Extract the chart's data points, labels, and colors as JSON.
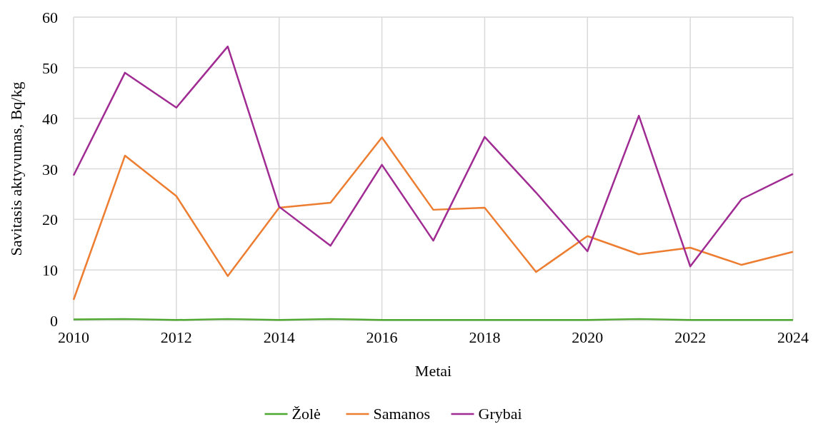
{
  "chart_data": {
    "type": "line",
    "xlabel": "Metai",
    "ylabel": "Savitasis aktyvumas, Bq/kg",
    "x": [
      2010,
      2011,
      2012,
      2013,
      2014,
      2015,
      2016,
      2017,
      2018,
      2019,
      2020,
      2021,
      2022,
      2023,
      2024
    ],
    "xlim": [
      2010,
      2024
    ],
    "xticks": [
      2010,
      2012,
      2014,
      2016,
      2018,
      2020,
      2022,
      2024
    ],
    "ylim": [
      0,
      60
    ],
    "yticks": [
      0,
      10,
      20,
      30,
      40,
      50,
      60
    ],
    "grid": true,
    "legend": "bottom",
    "marker": "none",
    "line_style": "solid",
    "series": [
      {
        "name": "Žolė",
        "color": "#4ea72e",
        "values": [
          0.2,
          0.3,
          0.1,
          0.3,
          0.1,
          0.3,
          0.1,
          0.1,
          0.1,
          0.1,
          0.1,
          0.3,
          0.1,
          0.1,
          0.1
        ]
      },
      {
        "name": "Samanos",
        "color": "#ed7d31",
        "values": [
          4.1,
          32.6,
          24.6,
          8.8,
          22.3,
          23.3,
          36.2,
          21.9,
          22.3,
          9.6,
          16.7,
          13.1,
          14.4,
          11.0,
          13.6
        ]
      },
      {
        "name": "Grybai",
        "color": "#a02b93",
        "values": [
          28.7,
          49.0,
          42.1,
          54.2,
          22.5,
          14.8,
          30.8,
          15.8,
          36.3,
          25.3,
          13.7,
          40.5,
          10.7,
          24.0,
          29.0
        ]
      }
    ]
  }
}
